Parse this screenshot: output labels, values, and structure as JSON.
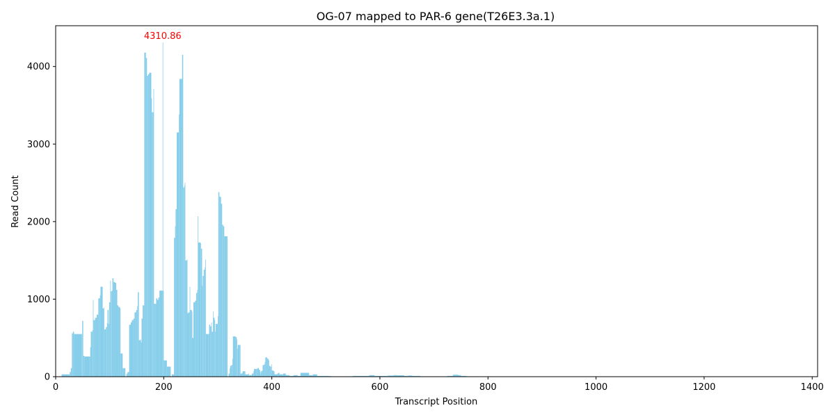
{
  "chart_data": {
    "type": "bar",
    "title": "OG-07 mapped to PAR-6 gene(T26E3.3a.1)",
    "xlabel": "Transcript Position",
    "ylabel": "Read Count",
    "xlim": [
      0,
      1410
    ],
    "ylim": [
      0,
      4526
    ],
    "x_ticks": [
      0,
      200,
      400,
      600,
      800,
      1000,
      1200,
      1400
    ],
    "y_ticks": [
      0,
      1000,
      2000,
      3000,
      4000
    ],
    "grid": false,
    "bar_color": "#87ceeb",
    "peak_annotation": {
      "x": 198,
      "value": 4310.86,
      "label": "4310.86",
      "color": "#ff0000"
    },
    "profile": [
      [
        10,
        0
      ],
      [
        11,
        30
      ],
      [
        24,
        30
      ],
      [
        26,
        60
      ],
      [
        28,
        110
      ],
      [
        30,
        560
      ],
      [
        32,
        580
      ],
      [
        34,
        550
      ],
      [
        48,
        550
      ],
      [
        49,
        720
      ],
      [
        50,
        720
      ],
      [
        51,
        270
      ],
      [
        53,
        260
      ],
      [
        63,
        260
      ],
      [
        64,
        380
      ],
      [
        65,
        580
      ],
      [
        68,
        600
      ],
      [
        69,
        990
      ],
      [
        70,
        730
      ],
      [
        73,
        760
      ],
      [
        76,
        800
      ],
      [
        79,
        1010
      ],
      [
        82,
        1050
      ],
      [
        83,
        1160
      ],
      [
        87,
        880
      ],
      [
        89,
        890
      ],
      [
        90,
        610
      ],
      [
        93,
        640
      ],
      [
        95,
        690
      ],
      [
        96,
        860
      ],
      [
        98,
        680
      ],
      [
        99,
        960
      ],
      [
        101,
        1240
      ],
      [
        102,
        1100
      ],
      [
        104,
        1110
      ],
      [
        105,
        1270
      ],
      [
        107,
        1220
      ],
      [
        110,
        1210
      ],
      [
        112,
        1120
      ],
      [
        114,
        920
      ],
      [
        116,
        900
      ],
      [
        119,
        880
      ],
      [
        120,
        300
      ],
      [
        123,
        300
      ],
      [
        124,
        110
      ],
      [
        127,
        110
      ],
      [
        129,
        0
      ],
      [
        131,
        40
      ],
      [
        133,
        60
      ],
      [
        136,
        670
      ],
      [
        139,
        700
      ],
      [
        141,
        730
      ],
      [
        144,
        750
      ],
      [
        146,
        830
      ],
      [
        149,
        860
      ],
      [
        151,
        910
      ],
      [
        152,
        1090
      ],
      [
        154,
        470
      ],
      [
        157,
        480
      ],
      [
        158,
        440
      ],
      [
        159,
        750
      ],
      [
        161,
        920
      ],
      [
        163,
        920
      ],
      [
        164,
        4180
      ],
      [
        167,
        4110
      ],
      [
        169,
        3880
      ],
      [
        171,
        3900
      ],
      [
        173,
        3920
      ],
      [
        177,
        3590
      ],
      [
        178,
        3410
      ],
      [
        180,
        3410
      ],
      [
        181,
        3710
      ],
      [
        182,
        940
      ],
      [
        185,
        940
      ],
      [
        186,
        1010
      ],
      [
        188,
        990
      ],
      [
        190,
        1020
      ],
      [
        192,
        1110
      ],
      [
        198,
        4310.86
      ],
      [
        199,
        1110
      ],
      [
        200,
        210
      ],
      [
        205,
        210
      ],
      [
        206,
        130
      ],
      [
        212,
        130
      ],
      [
        213,
        0
      ],
      [
        215,
        30
      ],
      [
        217,
        30
      ],
      [
        219,
        1790
      ],
      [
        221,
        1940
      ],
      [
        222,
        2160
      ],
      [
        224,
        3150
      ],
      [
        228,
        3380
      ],
      [
        229,
        3840
      ],
      [
        234,
        4150
      ],
      [
        236,
        2440
      ],
      [
        238,
        2460
      ],
      [
        239,
        2500
      ],
      [
        240,
        1500
      ],
      [
        243,
        1510
      ],
      [
        244,
        820
      ],
      [
        246,
        830
      ],
      [
        248,
        1160
      ],
      [
        249,
        860
      ],
      [
        252,
        840
      ],
      [
        253,
        500
      ],
      [
        255,
        960
      ],
      [
        258,
        980
      ],
      [
        260,
        1080
      ],
      [
        262,
        1120
      ],
      [
        263,
        2070
      ],
      [
        264,
        1730
      ],
      [
        268,
        1720
      ],
      [
        269,
        1650
      ],
      [
        271,
        1170
      ],
      [
        272,
        1300
      ],
      [
        274,
        1380
      ],
      [
        276,
        1410
      ],
      [
        277,
        1510
      ],
      [
        278,
        550
      ],
      [
        283,
        550
      ],
      [
        284,
        670
      ],
      [
        286,
        650
      ],
      [
        288,
        700
      ],
      [
        289,
        580
      ],
      [
        291,
        840
      ],
      [
        292,
        760
      ],
      [
        294,
        730
      ],
      [
        295,
        580
      ],
      [
        296,
        680
      ],
      [
        298,
        680
      ],
      [
        300,
        780
      ],
      [
        301,
        2380
      ],
      [
        303,
        2320
      ],
      [
        306,
        2230
      ],
      [
        308,
        1960
      ],
      [
        310,
        1940
      ],
      [
        312,
        1810
      ],
      [
        316,
        1810
      ],
      [
        318,
        0
      ],
      [
        320,
        40
      ],
      [
        322,
        110
      ],
      [
        323,
        140
      ],
      [
        325,
        150
      ],
      [
        327,
        230
      ],
      [
        328,
        520
      ],
      [
        333,
        510
      ],
      [
        335,
        480
      ],
      [
        336,
        360
      ],
      [
        337,
        410
      ],
      [
        341,
        410
      ],
      [
        342,
        40
      ],
      [
        345,
        50
      ],
      [
        346,
        70
      ],
      [
        350,
        70
      ],
      [
        351,
        30
      ],
      [
        356,
        30
      ],
      [
        357,
        40
      ],
      [
        358,
        20
      ],
      [
        362,
        20
      ],
      [
        363,
        40
      ],
      [
        366,
        70
      ],
      [
        367,
        100
      ],
      [
        372,
        100
      ],
      [
        373,
        110
      ],
      [
        376,
        90
      ],
      [
        378,
        70
      ],
      [
        379,
        40
      ],
      [
        380,
        70
      ],
      [
        382,
        80
      ],
      [
        383,
        150
      ],
      [
        386,
        160
      ],
      [
        387,
        190
      ],
      [
        388,
        250
      ],
      [
        391,
        240
      ],
      [
        392,
        230
      ],
      [
        394,
        210
      ],
      [
        395,
        140
      ],
      [
        397,
        130
      ],
      [
        399,
        160
      ],
      [
        400,
        80
      ],
      [
        403,
        70
      ],
      [
        405,
        30
      ],
      [
        410,
        40
      ],
      [
        412,
        50
      ],
      [
        414,
        30
      ],
      [
        420,
        30
      ],
      [
        421,
        40
      ],
      [
        425,
        40
      ],
      [
        426,
        20
      ],
      [
        432,
        20
      ],
      [
        433,
        10
      ],
      [
        440,
        20
      ],
      [
        446,
        20
      ],
      [
        448,
        10
      ],
      [
        452,
        10
      ],
      [
        453,
        50
      ],
      [
        468,
        50
      ],
      [
        469,
        20
      ],
      [
        475,
        20
      ],
      [
        476,
        30
      ],
      [
        483,
        30
      ],
      [
        484,
        10
      ],
      [
        490,
        10
      ],
      [
        495,
        10
      ],
      [
        505,
        8
      ],
      [
        510,
        5
      ],
      [
        530,
        0
      ],
      [
        533,
        5
      ],
      [
        545,
        5
      ],
      [
        550,
        10
      ],
      [
        565,
        10
      ],
      [
        580,
        20
      ],
      [
        590,
        10
      ],
      [
        600,
        10
      ],
      [
        615,
        15
      ],
      [
        625,
        20
      ],
      [
        632,
        18
      ],
      [
        645,
        10
      ],
      [
        652,
        15
      ],
      [
        660,
        10
      ],
      [
        675,
        5
      ],
      [
        690,
        5
      ],
      [
        710,
        0
      ],
      [
        725,
        10
      ],
      [
        735,
        25
      ],
      [
        745,
        20
      ],
      [
        750,
        10
      ],
      [
        760,
        5
      ],
      [
        780,
        0
      ],
      [
        800,
        5
      ],
      [
        810,
        0
      ]
    ]
  }
}
